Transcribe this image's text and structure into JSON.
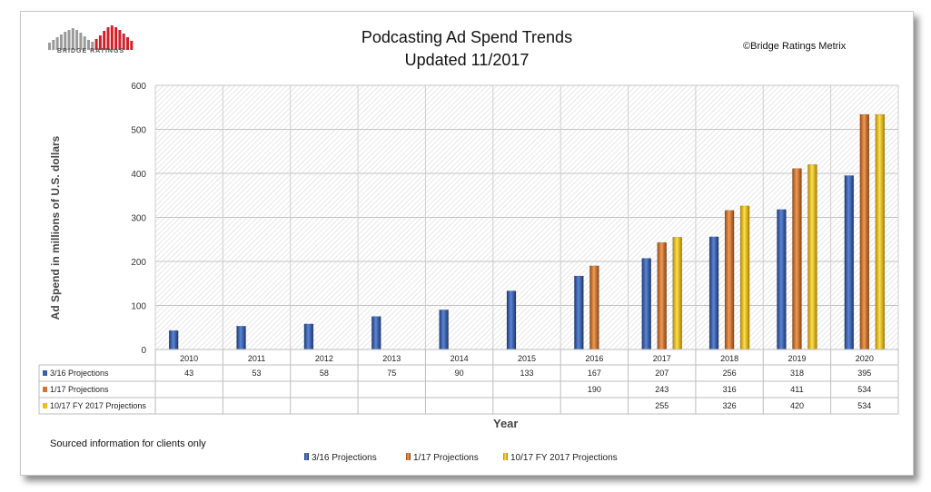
{
  "header": {
    "title_line1": "Podcasting Ad Spend Trends",
    "title_line2": "Updated 11/2017",
    "copyright": "©Bridge Ratings Metrix",
    "logo_text": "BRIDGE RATINGS"
  },
  "footer": {
    "source_note": "Sourced information for clients only"
  },
  "colors": {
    "series_3_16": "#3a5fad",
    "series_1_17": "#d9742a",
    "series_10_17": "#f2c200"
  },
  "chart_data": {
    "type": "bar",
    "title": "Podcasting Ad Spend Trends Updated 11/2017",
    "xlabel": "Year",
    "ylabel": "Ad Spend in millions of U.S. dollars",
    "ylim": [
      0,
      600
    ],
    "yticks": [
      0,
      100,
      200,
      300,
      400,
      500,
      600
    ],
    "grid": true,
    "legend_position": "bottom",
    "categories": [
      "2010",
      "2011",
      "2012",
      "2013",
      "2014",
      "2015",
      "2016",
      "2017",
      "2018",
      "2019",
      "2020"
    ],
    "series": [
      {
        "name": "3/16 Projections",
        "values": [
          43,
          53,
          58,
          75,
          90,
          133,
          167,
          207,
          256,
          318,
          395
        ]
      },
      {
        "name": "1/17 Projections",
        "values": [
          null,
          null,
          null,
          null,
          null,
          null,
          190,
          243,
          316,
          411,
          534
        ]
      },
      {
        "name": "10/17 FY 2017 Projections",
        "values": [
          null,
          null,
          null,
          null,
          null,
          null,
          null,
          255,
          326,
          420,
          534
        ]
      }
    ]
  }
}
